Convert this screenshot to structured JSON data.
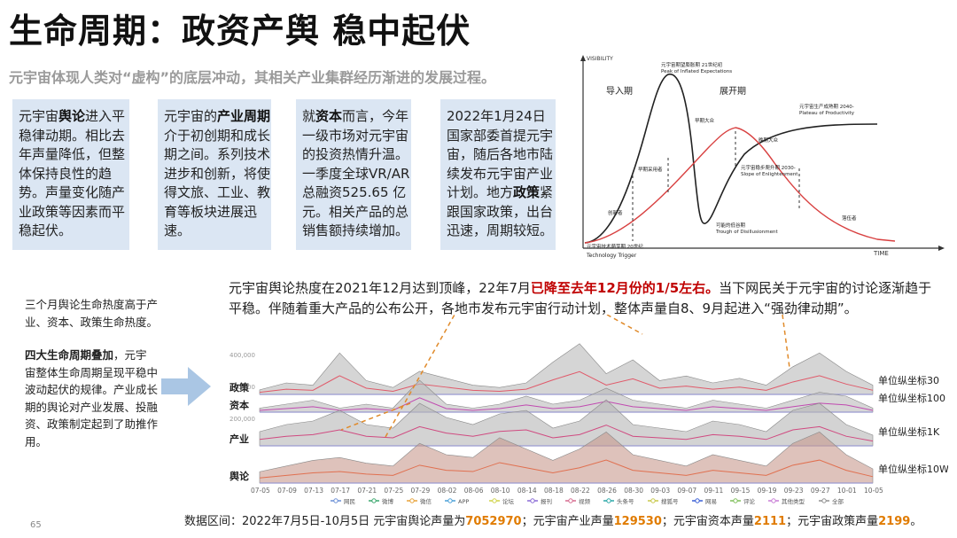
{
  "title": "生命周期：政资产舆 稳中起伏",
  "subtitle": "元宇宙体现人类对“虚构”的底层冲动，其相关产业集群经历渐进的发展过程。",
  "cards": [
    {
      "pre": "元宇宙",
      "bold": "舆论",
      "post": "进入平稳律动期。相比去年声量降低，但整体保持良性的趋势。声量变化随产业政策等因素而平稳起伏。"
    },
    {
      "pre": "元宇宙的",
      "bold": "产业周期",
      "post": "介于初创期和成长期之间。系列技术进步和创新，将使得文旅、工业、教育等板块进展迅速。"
    },
    {
      "pre": "就",
      "bold": "资本",
      "post": "而言，今年一级市场对元宇宙的投资热情升温。一季度全球VR/AR总融资525.65 亿元。相关产品的总销售额持续增加。"
    },
    {
      "pre": "2022年1月24日国家部委首提元宇宙，随后各地市陆续发布元宇宙产业计划。地方",
      "bold": "政策",
      "post": "紧跟国家政策，出台迅速，周期较短。"
    }
  ],
  "left_note": {
    "para1": "三个月舆论生命热度高于产业、资本、政策生命热度。",
    "para2_bold": "四大生命周期叠加",
    "para2_rest": "，元宇宙整体生命周期呈现平稳中波动起伏的规律。产业成长期的舆论对产业发展、投融资、政策制定起到了助推作用。"
  },
  "chart_caption": {
    "part1": "元宇宙舆论热度在2021年12月达到顶峰，22年7月",
    "highlight": "已降至去年12月份的1/5左右。",
    "part2": "当下网民关于元宇宙的讨论逐渐趋于平稳。伴随着重大产品的公布公开，各地市发布元宇宙行动计划，整体声量自8、9月起进入“强劲律动期”。"
  },
  "data_range": {
    "label": "数据区间：2022年7月5日-10月5日",
    "s1": " 元宇宙舆论声量为",
    "v1": "7052970",
    "s2": "；元宇宙产业声量",
    "v2": "129530",
    "s3": "；元宇宙资本声量",
    "v3": "2111",
    "s4": "；元宇宙政策声量",
    "v4": "2199",
    "end": "。"
  },
  "page_number": "65",
  "hype_cycle": {
    "y_axis": "VISIBILITY",
    "x_axis": "TIME",
    "phase_intro": "导入期",
    "phase_expand": "展开期",
    "labels": {
      "peak_cn": "元宇宙期望膨胀期 21世纪初",
      "peak_en": "Peak of Inflated Expectations",
      "plateau_cn": "元宇宙生产成熟期 2040-",
      "plateau_en": "Plateau of Productivity",
      "slope_cn": "元宇宙稳步爬升期 2030-",
      "slope_en": "Slope of Enlightenment",
      "trough_cn": "可能的低谷期",
      "trough_en": "Trough of Disillusionment",
      "trigger_cn": "元宇宙技术萌芽期 20世纪",
      "trigger_en": "Technology Trigger",
      "early_adopters": "早期采用者",
      "early_majority": "早期大众",
      "late_majority": "晚期大众",
      "innovators": "创新者",
      "laggards": "落伍者"
    }
  },
  "chart_data": {
    "type": "area",
    "title": "",
    "x": [
      "07-05",
      "07-09",
      "07-13",
      "07-17",
      "07-21",
      "07-25",
      "07-29",
      "08-02",
      "08-06",
      "08-10",
      "08-14",
      "08-18",
      "08-22",
      "08-26",
      "08-30",
      "09-03",
      "09-07",
      "09-11",
      "09-15",
      "09-19",
      "09-23",
      "09-27",
      "10-01",
      "10-05"
    ],
    "y_ticks": [
      "400,000",
      "300,000",
      "200,000"
    ],
    "legend": [
      "网民",
      "微博",
      "微信",
      "APP",
      "论坛",
      "报刊",
      "视频",
      "头条号",
      "搜狐号",
      "网易",
      "评论",
      "其他类型",
      "全部"
    ],
    "series_colors": [
      "#6a8fd6",
      "#3aa76d",
      "#e8a33a",
      "#4aa0d8",
      "#d0d34a",
      "#8a6ad6",
      "#d66a8f",
      "#2aa8a8",
      "#c8c84a",
      "#3a5fd6",
      "#7fbf5a",
      "#c87dd6",
      "#909090"
    ],
    "panels": [
      {
        "name": "政策",
        "unit": "单位纵坐标30",
        "values": [
          2,
          5,
          4,
          18,
          6,
          3,
          10,
          7,
          4,
          3,
          5,
          14,
          22,
          9,
          15,
          6,
          8,
          5,
          7,
          4,
          12,
          18,
          10,
          4
        ]
      },
      {
        "name": "资本",
        "unit": "单位纵坐标100",
        "values": [
          1,
          2,
          3,
          1,
          2,
          1,
          8,
          2,
          1,
          2,
          4,
          2,
          3,
          6,
          3,
          2,
          1,
          3,
          2,
          1,
          3,
          5,
          4,
          1
        ]
      },
      {
        "name": "产业",
        "unit": "单位纵坐标1K",
        "values": [
          8,
          12,
          14,
          20,
          12,
          10,
          24,
          16,
          12,
          18,
          20,
          10,
          14,
          26,
          12,
          10,
          8,
          14,
          12,
          8,
          20,
          24,
          12,
          6
        ]
      },
      {
        "name": "舆论",
        "unit": "单位纵坐标10W",
        "values": [
          4,
          6,
          8,
          9,
          7,
          6,
          14,
          10,
          9,
          16,
          12,
          8,
          12,
          18,
          10,
          8,
          6,
          10,
          8,
          6,
          14,
          18,
          10,
          5
        ]
      }
    ]
  }
}
